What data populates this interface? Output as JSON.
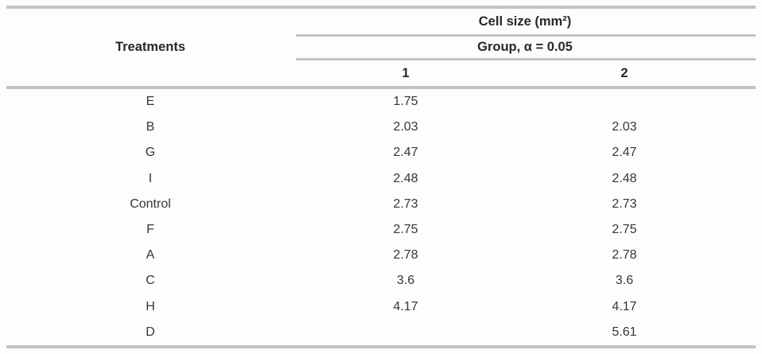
{
  "table": {
    "row_header": "Treatments",
    "col_group_title": "Cell size (mm²)",
    "subgroup_title": "Group, α = 0.05",
    "group_columns": [
      "1",
      "2"
    ],
    "rows": [
      {
        "treatment": "E",
        "g1": "1.75",
        "g2": ""
      },
      {
        "treatment": "B",
        "g1": "2.03",
        "g2": "2.03"
      },
      {
        "treatment": "G",
        "g1": "2.47",
        "g2": "2.47"
      },
      {
        "treatment": "I",
        "g1": "2.48",
        "g2": "2.48"
      },
      {
        "treatment": "Control",
        "g1": "2.73",
        "g2": "2.73"
      },
      {
        "treatment": "F",
        "g1": "2.75",
        "g2": "2.75"
      },
      {
        "treatment": "A",
        "g1": "2.78",
        "g2": "2.78"
      },
      {
        "treatment": "C",
        "g1": "3.6",
        "g2": "3.6"
      },
      {
        "treatment": "H",
        "g1": "4.17",
        "g2": "4.17"
      },
      {
        "treatment": "D",
        "g1": "",
        "g2": "5.61"
      }
    ]
  }
}
